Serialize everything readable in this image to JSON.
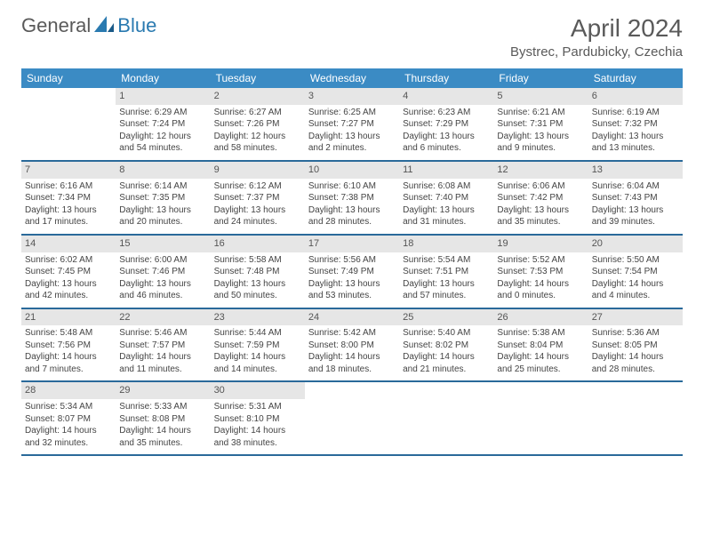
{
  "logo": {
    "text1": "General",
    "text2": "Blue"
  },
  "title": "April 2024",
  "location": "Bystrec, Pardubicky, Czechia",
  "colors": {
    "header_bg": "#3b8bc4",
    "header_text": "#ffffff",
    "daynum_bg": "#e6e6e6",
    "row_border": "#2a6a9a",
    "logo_blue": "#2a7ab0",
    "text_gray": "#5a5a5a"
  },
  "weekdays": [
    "Sunday",
    "Monday",
    "Tuesday",
    "Wednesday",
    "Thursday",
    "Friday",
    "Saturday"
  ],
  "weeks": [
    [
      {
        "day": "",
        "sunrise": "",
        "sunset": "",
        "daylight": ""
      },
      {
        "day": "1",
        "sunrise": "Sunrise: 6:29 AM",
        "sunset": "Sunset: 7:24 PM",
        "daylight": "Daylight: 12 hours and 54 minutes."
      },
      {
        "day": "2",
        "sunrise": "Sunrise: 6:27 AM",
        "sunset": "Sunset: 7:26 PM",
        "daylight": "Daylight: 12 hours and 58 minutes."
      },
      {
        "day": "3",
        "sunrise": "Sunrise: 6:25 AM",
        "sunset": "Sunset: 7:27 PM",
        "daylight": "Daylight: 13 hours and 2 minutes."
      },
      {
        "day": "4",
        "sunrise": "Sunrise: 6:23 AM",
        "sunset": "Sunset: 7:29 PM",
        "daylight": "Daylight: 13 hours and 6 minutes."
      },
      {
        "day": "5",
        "sunrise": "Sunrise: 6:21 AM",
        "sunset": "Sunset: 7:31 PM",
        "daylight": "Daylight: 13 hours and 9 minutes."
      },
      {
        "day": "6",
        "sunrise": "Sunrise: 6:19 AM",
        "sunset": "Sunset: 7:32 PM",
        "daylight": "Daylight: 13 hours and 13 minutes."
      }
    ],
    [
      {
        "day": "7",
        "sunrise": "Sunrise: 6:16 AM",
        "sunset": "Sunset: 7:34 PM",
        "daylight": "Daylight: 13 hours and 17 minutes."
      },
      {
        "day": "8",
        "sunrise": "Sunrise: 6:14 AM",
        "sunset": "Sunset: 7:35 PM",
        "daylight": "Daylight: 13 hours and 20 minutes."
      },
      {
        "day": "9",
        "sunrise": "Sunrise: 6:12 AM",
        "sunset": "Sunset: 7:37 PM",
        "daylight": "Daylight: 13 hours and 24 minutes."
      },
      {
        "day": "10",
        "sunrise": "Sunrise: 6:10 AM",
        "sunset": "Sunset: 7:38 PM",
        "daylight": "Daylight: 13 hours and 28 minutes."
      },
      {
        "day": "11",
        "sunrise": "Sunrise: 6:08 AM",
        "sunset": "Sunset: 7:40 PM",
        "daylight": "Daylight: 13 hours and 31 minutes."
      },
      {
        "day": "12",
        "sunrise": "Sunrise: 6:06 AM",
        "sunset": "Sunset: 7:42 PM",
        "daylight": "Daylight: 13 hours and 35 minutes."
      },
      {
        "day": "13",
        "sunrise": "Sunrise: 6:04 AM",
        "sunset": "Sunset: 7:43 PM",
        "daylight": "Daylight: 13 hours and 39 minutes."
      }
    ],
    [
      {
        "day": "14",
        "sunrise": "Sunrise: 6:02 AM",
        "sunset": "Sunset: 7:45 PM",
        "daylight": "Daylight: 13 hours and 42 minutes."
      },
      {
        "day": "15",
        "sunrise": "Sunrise: 6:00 AM",
        "sunset": "Sunset: 7:46 PM",
        "daylight": "Daylight: 13 hours and 46 minutes."
      },
      {
        "day": "16",
        "sunrise": "Sunrise: 5:58 AM",
        "sunset": "Sunset: 7:48 PM",
        "daylight": "Daylight: 13 hours and 50 minutes."
      },
      {
        "day": "17",
        "sunrise": "Sunrise: 5:56 AM",
        "sunset": "Sunset: 7:49 PM",
        "daylight": "Daylight: 13 hours and 53 minutes."
      },
      {
        "day": "18",
        "sunrise": "Sunrise: 5:54 AM",
        "sunset": "Sunset: 7:51 PM",
        "daylight": "Daylight: 13 hours and 57 minutes."
      },
      {
        "day": "19",
        "sunrise": "Sunrise: 5:52 AM",
        "sunset": "Sunset: 7:53 PM",
        "daylight": "Daylight: 14 hours and 0 minutes."
      },
      {
        "day": "20",
        "sunrise": "Sunrise: 5:50 AM",
        "sunset": "Sunset: 7:54 PM",
        "daylight": "Daylight: 14 hours and 4 minutes."
      }
    ],
    [
      {
        "day": "21",
        "sunrise": "Sunrise: 5:48 AM",
        "sunset": "Sunset: 7:56 PM",
        "daylight": "Daylight: 14 hours and 7 minutes."
      },
      {
        "day": "22",
        "sunrise": "Sunrise: 5:46 AM",
        "sunset": "Sunset: 7:57 PM",
        "daylight": "Daylight: 14 hours and 11 minutes."
      },
      {
        "day": "23",
        "sunrise": "Sunrise: 5:44 AM",
        "sunset": "Sunset: 7:59 PM",
        "daylight": "Daylight: 14 hours and 14 minutes."
      },
      {
        "day": "24",
        "sunrise": "Sunrise: 5:42 AM",
        "sunset": "Sunset: 8:00 PM",
        "daylight": "Daylight: 14 hours and 18 minutes."
      },
      {
        "day": "25",
        "sunrise": "Sunrise: 5:40 AM",
        "sunset": "Sunset: 8:02 PM",
        "daylight": "Daylight: 14 hours and 21 minutes."
      },
      {
        "day": "26",
        "sunrise": "Sunrise: 5:38 AM",
        "sunset": "Sunset: 8:04 PM",
        "daylight": "Daylight: 14 hours and 25 minutes."
      },
      {
        "day": "27",
        "sunrise": "Sunrise: 5:36 AM",
        "sunset": "Sunset: 8:05 PM",
        "daylight": "Daylight: 14 hours and 28 minutes."
      }
    ],
    [
      {
        "day": "28",
        "sunrise": "Sunrise: 5:34 AM",
        "sunset": "Sunset: 8:07 PM",
        "daylight": "Daylight: 14 hours and 32 minutes."
      },
      {
        "day": "29",
        "sunrise": "Sunrise: 5:33 AM",
        "sunset": "Sunset: 8:08 PM",
        "daylight": "Daylight: 14 hours and 35 minutes."
      },
      {
        "day": "30",
        "sunrise": "Sunrise: 5:31 AM",
        "sunset": "Sunset: 8:10 PM",
        "daylight": "Daylight: 14 hours and 38 minutes."
      },
      {
        "day": "",
        "sunrise": "",
        "sunset": "",
        "daylight": ""
      },
      {
        "day": "",
        "sunrise": "",
        "sunset": "",
        "daylight": ""
      },
      {
        "day": "",
        "sunrise": "",
        "sunset": "",
        "daylight": ""
      },
      {
        "day": "",
        "sunrise": "",
        "sunset": "",
        "daylight": ""
      }
    ]
  ]
}
